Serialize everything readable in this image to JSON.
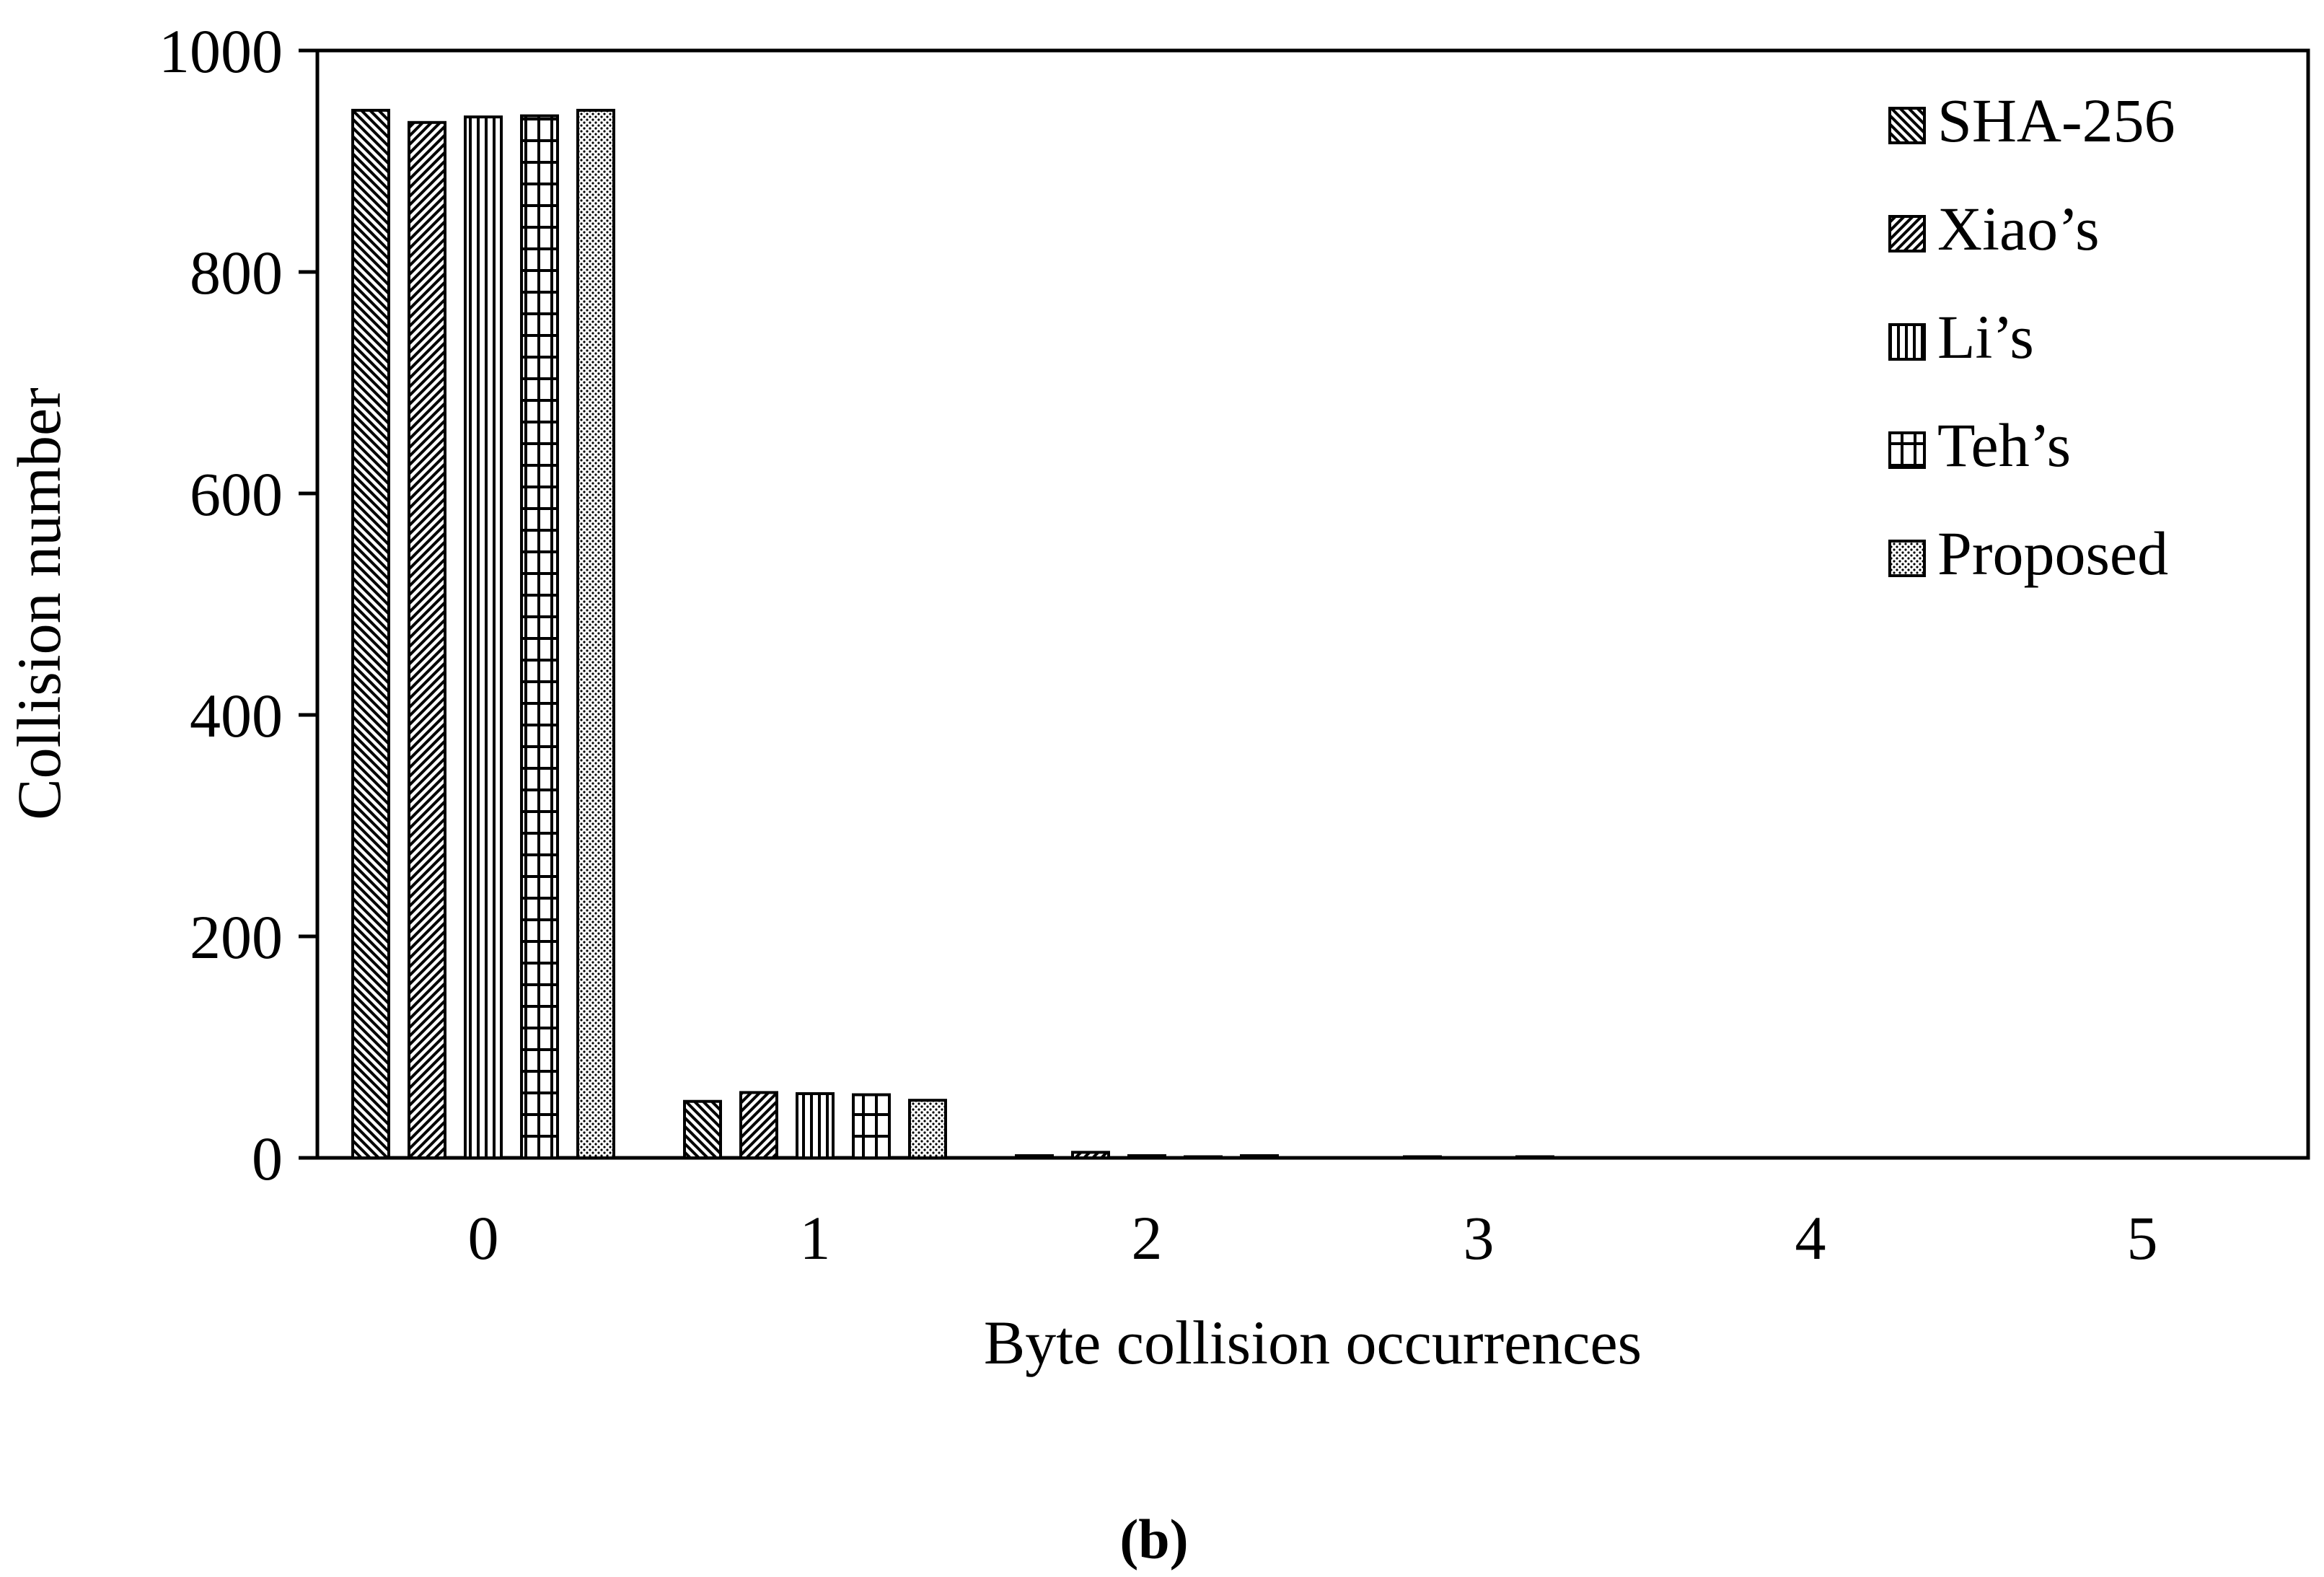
{
  "chart_data": {
    "type": "bar",
    "title": "",
    "xlabel": "Byte collision occurrences",
    "ylabel": "Collision number",
    "categories": [
      "0",
      "1",
      "2",
      "3",
      "4",
      "5"
    ],
    "ylim": [
      0,
      1000
    ],
    "yticks": [
      "0",
      "200",
      "400",
      "600",
      "800",
      "1000"
    ],
    "grid": false,
    "legend_position": "top-right",
    "series": [
      {
        "name": "SHA-256",
        "pattern": "diag-back",
        "values": [
          946,
          51,
          2,
          0,
          0,
          0
        ]
      },
      {
        "name": "Xiao’s",
        "pattern": "diag-fwd",
        "values": [
          935,
          59,
          5,
          1,
          0,
          0
        ]
      },
      {
        "name": "Li’s",
        "pattern": "vertical",
        "values": [
          940,
          58,
          2,
          0,
          0,
          0
        ]
      },
      {
        "name": "Teh’s",
        "pattern": "grid",
        "values": [
          941,
          57,
          1,
          1,
          0,
          0
        ]
      },
      {
        "name": "Proposed",
        "pattern": "dots",
        "values": [
          946,
          52,
          2,
          0,
          0,
          0
        ]
      }
    ]
  },
  "caption": "(b)"
}
